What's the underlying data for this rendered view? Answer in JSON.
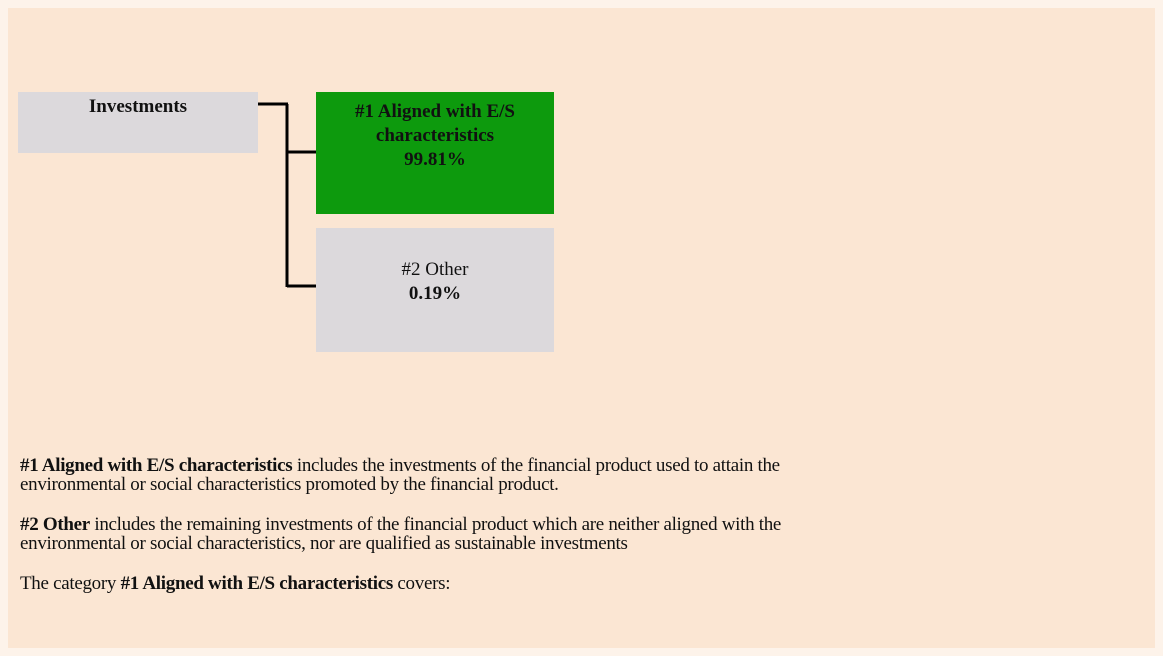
{
  "diagram": {
    "root": {
      "label": "Investments"
    },
    "children": [
      {
        "label": "#1 Aligned with E/S characteristics",
        "value": "99.81%"
      },
      {
        "label": "#2 Other",
        "value": "0.19%"
      }
    ]
  },
  "notes": [
    {
      "lead": "#1 Aligned with E/S characteristics",
      "lines": [
        "includes the investments of the financial product used to attain the",
        "environmental or social characteristics promoted by the financial product."
      ]
    },
    {
      "lead": "#2 Other",
      "lines": [
        "includes the remaining investments of the financial product which are neither aligned with the",
        "environmental or social characteristics, nor are qualified as sustainable investments"
      ]
    }
  ],
  "footer": {
    "before": "The category",
    "bold": "#1 Aligned with E/S characteristics",
    "after": "covers:"
  }
}
